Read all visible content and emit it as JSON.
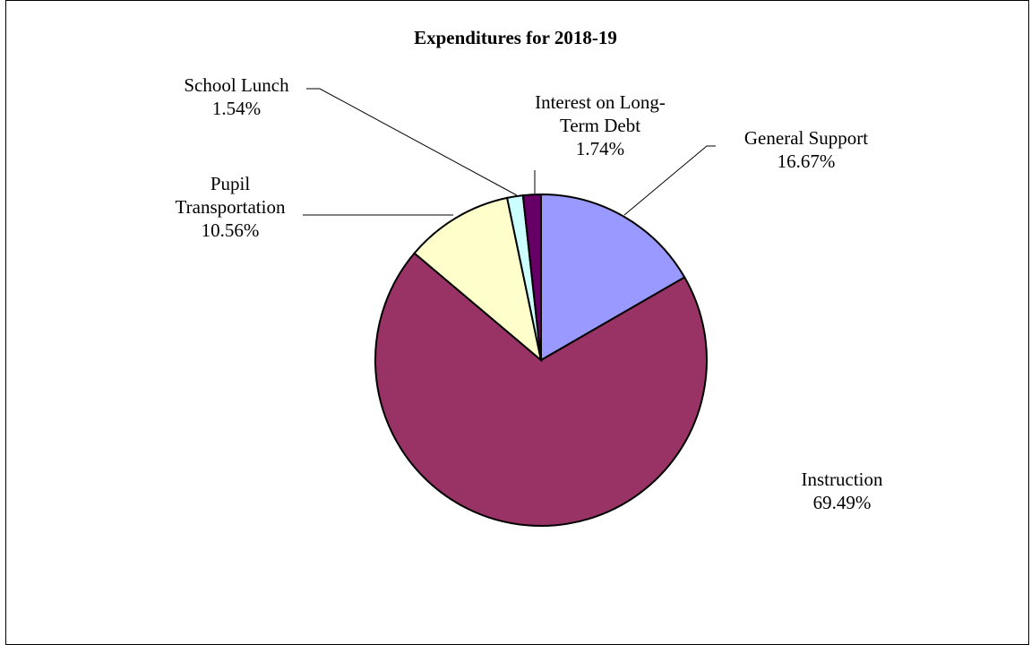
{
  "chart_data": {
    "type": "pie",
    "title": "Expenditures for 2018-19",
    "start_angle_deg": 0,
    "direction": "clockwise",
    "legend": "none",
    "slices": [
      {
        "label": [
          "General Support"
        ],
        "percent_label": "16.67%",
        "value": 16.67,
        "color": "#9999ff"
      },
      {
        "label": [
          "Instruction"
        ],
        "percent_label": "69.49%",
        "value": 69.49,
        "color": "#993366"
      },
      {
        "label": [
          "Pupil",
          "Transportation"
        ],
        "percent_label": "10.56%",
        "value": 10.56,
        "color": "#ffffcc"
      },
      {
        "label": [
          "School Lunch"
        ],
        "percent_label": "1.54%",
        "value": 1.54,
        "color": "#ccffff"
      },
      {
        "label": [
          "Interest on Long-",
          "Term Debt"
        ],
        "percent_label": "1.74%",
        "value": 1.74,
        "color": "#660066"
      }
    ]
  }
}
